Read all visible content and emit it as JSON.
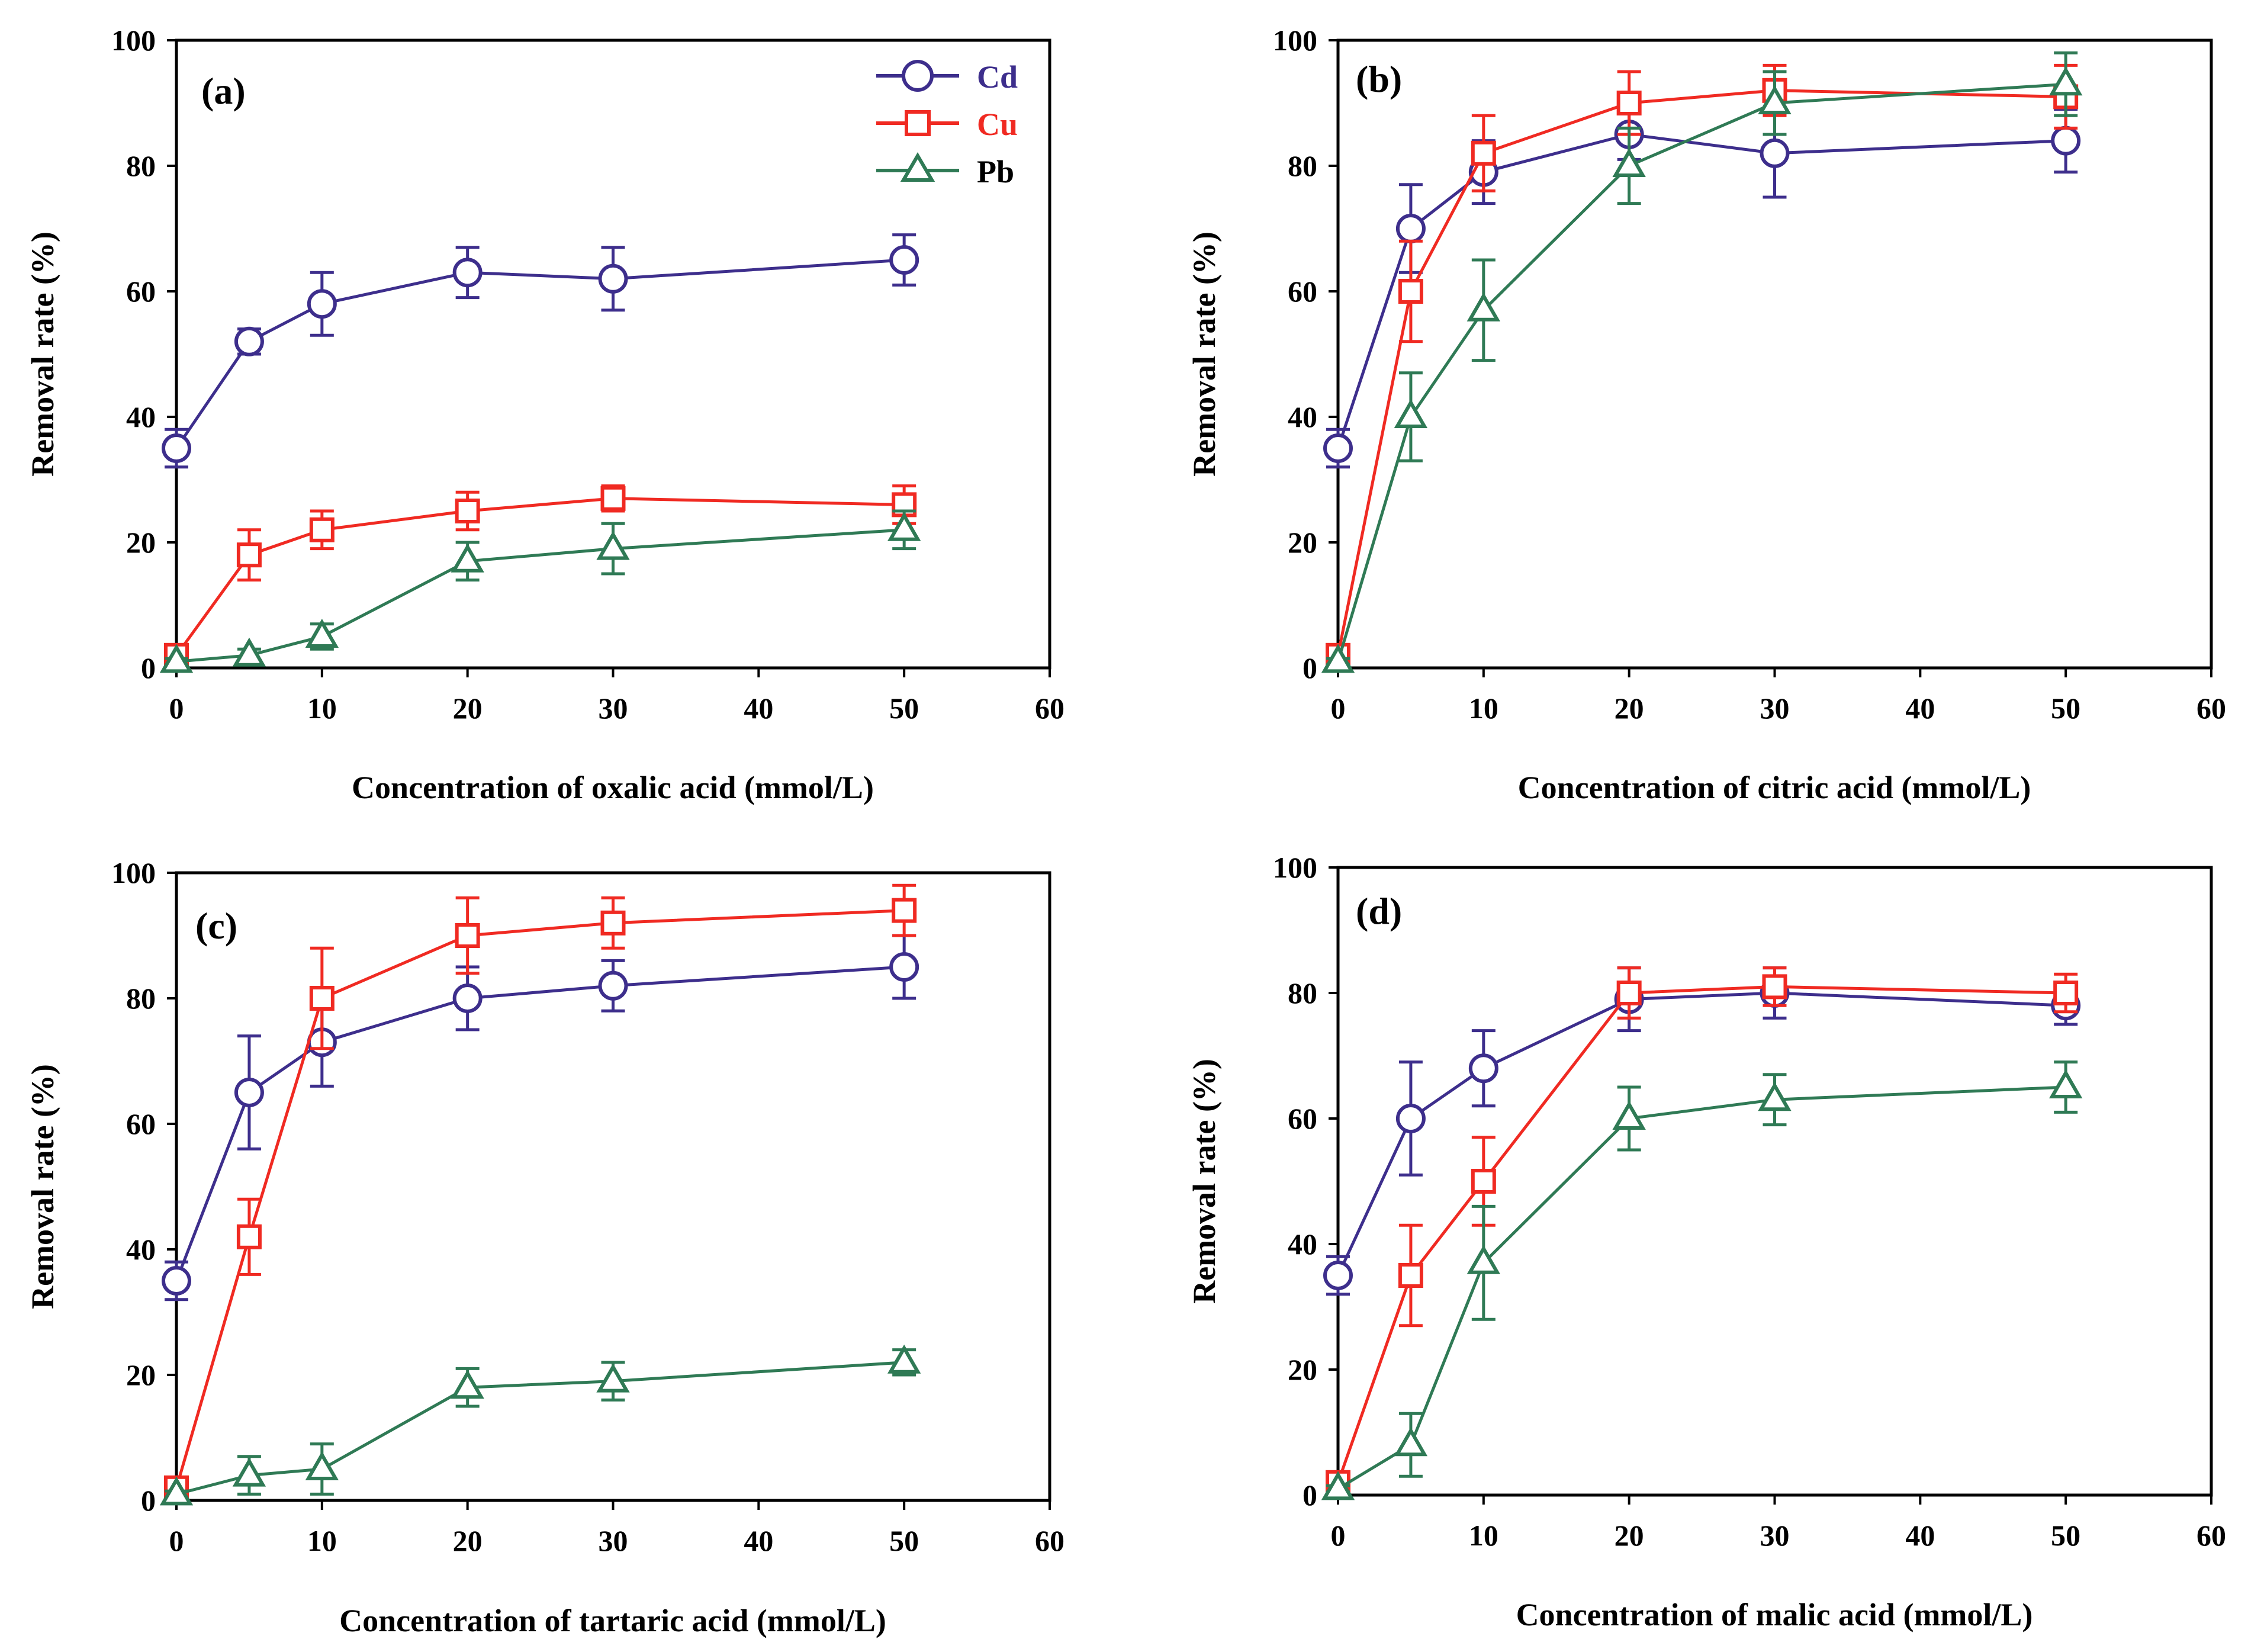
{
  "legend": [
    {
      "name": "Cd",
      "color": "#3d2e8c",
      "marker": "circle"
    },
    {
      "name": "Cu",
      "color": "#f02a22",
      "marker": "square"
    },
    {
      "name": "Pb",
      "color": "#2f7a55",
      "marker": "triangle"
    }
  ],
  "chart_data": [
    {
      "type": "line",
      "panel": "(a)",
      "xlabel": "Concentration of oxalic acid (mmol/L)",
      "ylabel": "Removal rate (%)",
      "xlim": [
        0,
        60
      ],
      "ylim": [
        0,
        100
      ],
      "xticks": [
        0,
        10,
        20,
        30,
        40,
        50,
        60
      ],
      "yticks": [
        0,
        20,
        40,
        60,
        80,
        100
      ],
      "legend_position": "top-right",
      "x": [
        0,
        5,
        10,
        20,
        30,
        50
      ],
      "series": [
        {
          "name": "Cd",
          "values": [
            35,
            52,
            58,
            63,
            62,
            65
          ],
          "errors": [
            3,
            2,
            5,
            4,
            5,
            4
          ]
        },
        {
          "name": "Cu",
          "values": [
            2,
            18,
            22,
            25,
            27,
            26
          ],
          "errors": [
            1,
            4,
            3,
            3,
            2,
            3
          ]
        },
        {
          "name": "Pb",
          "values": [
            1,
            2,
            5,
            17,
            19,
            22
          ],
          "errors": [
            0.5,
            1,
            2,
            3,
            4,
            3
          ]
        }
      ]
    },
    {
      "type": "line",
      "panel": "(b)",
      "xlabel": "Concentration of citric acid (mmol/L)",
      "ylabel": "Removal rate (%)",
      "xlim": [
        0,
        60
      ],
      "ylim": [
        0,
        100
      ],
      "xticks": [
        0,
        10,
        20,
        30,
        40,
        50,
        60
      ],
      "yticks": [
        0,
        20,
        40,
        60,
        80,
        100
      ],
      "x": [
        0,
        5,
        10,
        20,
        30,
        50
      ],
      "series": [
        {
          "name": "Cd",
          "values": [
            35,
            70,
            79,
            85,
            82,
            84
          ],
          "errors": [
            3,
            7,
            5,
            4,
            7,
            5
          ]
        },
        {
          "name": "Cu",
          "values": [
            2,
            60,
            82,
            90,
            92,
            91
          ],
          "errors": [
            1,
            8,
            6,
            5,
            4,
            5
          ]
        },
        {
          "name": "Pb",
          "values": [
            1,
            40,
            57,
            80,
            90,
            93
          ],
          "errors": [
            0.5,
            7,
            8,
            6,
            5,
            5
          ]
        }
      ]
    },
    {
      "type": "line",
      "panel": "(c)",
      "xlabel": "Concentration of tartaric acid (mmol/L)",
      "ylabel": "Removal rate (%)",
      "xlim": [
        0,
        60
      ],
      "ylim": [
        0,
        100
      ],
      "xticks": [
        0,
        10,
        20,
        30,
        40,
        50,
        60
      ],
      "yticks": [
        0,
        20,
        40,
        60,
        80,
        100
      ],
      "x": [
        0,
        5,
        10,
        20,
        30,
        50
      ],
      "series": [
        {
          "name": "Cd",
          "values": [
            35,
            65,
            73,
            80,
            82,
            85
          ],
          "errors": [
            3,
            9,
            7,
            5,
            4,
            5
          ]
        },
        {
          "name": "Cu",
          "values": [
            2,
            42,
            80,
            90,
            92,
            94
          ],
          "errors": [
            1,
            6,
            8,
            6,
            4,
            4
          ]
        },
        {
          "name": "Pb",
          "values": [
            1,
            4,
            5,
            18,
            19,
            22
          ],
          "errors": [
            0.5,
            3,
            4,
            3,
            3,
            2
          ]
        }
      ]
    },
    {
      "type": "line",
      "panel": "(d)",
      "xlabel": "Concentration of malic acid (mmol/L)",
      "ylabel": "Removal rate (%)",
      "xlim": [
        0,
        60
      ],
      "ylim": [
        0,
        100
      ],
      "xticks": [
        0,
        10,
        20,
        30,
        40,
        50,
        60
      ],
      "yticks": [
        0,
        20,
        40,
        60,
        80,
        100
      ],
      "x": [
        0,
        5,
        10,
        20,
        30,
        50
      ],
      "series": [
        {
          "name": "Cd",
          "values": [
            35,
            60,
            68,
            79,
            80,
            78
          ],
          "errors": [
            3,
            9,
            6,
            5,
            4,
            3
          ]
        },
        {
          "name": "Cu",
          "values": [
            2,
            35,
            50,
            80,
            81,
            80
          ],
          "errors": [
            1,
            8,
            7,
            4,
            3,
            3
          ]
        },
        {
          "name": "Pb",
          "values": [
            1,
            8,
            37,
            60,
            63,
            65
          ],
          "errors": [
            0.5,
            5,
            9,
            5,
            4,
            4
          ]
        }
      ]
    }
  ]
}
